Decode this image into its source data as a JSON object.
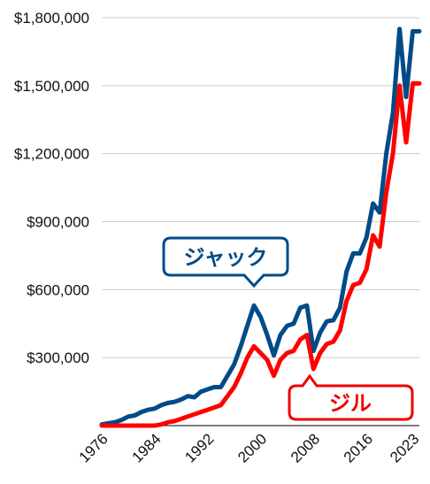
{
  "chart_data": {
    "type": "line",
    "ylim": [
      0,
      1800000
    ],
    "yticks": [
      {
        "value": 300000,
        "label": "$300,000"
      },
      {
        "value": 600000,
        "label": "$600,000"
      },
      {
        "value": 900000,
        "label": "$900,000"
      },
      {
        "value": 1200000,
        "label": "$1,200,000"
      },
      {
        "value": 1500000,
        "label": "$1,500,000"
      },
      {
        "value": 1800000,
        "label": "$1,800,000"
      }
    ],
    "xlim": [
      1976,
      2024
    ],
    "xticks": [
      {
        "value": 1976,
        "label": "1976"
      },
      {
        "value": 1984,
        "label": "1984"
      },
      {
        "value": 1992,
        "label": "1992"
      },
      {
        "value": 2000,
        "label": "2000"
      },
      {
        "value": 2008,
        "label": "2008"
      },
      {
        "value": 2016,
        "label": "2016"
      },
      {
        "value": 2023,
        "label": "2023"
      }
    ],
    "x": [
      1976,
      1977,
      1978,
      1979,
      1980,
      1981,
      1982,
      1983,
      1984,
      1985,
      1986,
      1987,
      1988,
      1989,
      1990,
      1991,
      1992,
      1993,
      1994,
      1995,
      1996,
      1997,
      1998,
      1999,
      2000,
      2001,
      2002,
      2003,
      2004,
      2005,
      2006,
      2007,
      2008,
      2009,
      2010,
      2011,
      2012,
      2013,
      2014,
      2015,
      2016,
      2017,
      2018,
      2019,
      2020,
      2021,
      2022,
      2023,
      2024
    ],
    "series": [
      {
        "name": "ジャック",
        "color": "#004b87",
        "values": [
          5000,
          10000,
          15000,
          25000,
          40000,
          45000,
          60000,
          70000,
          75000,
          90000,
          100000,
          105000,
          115000,
          130000,
          125000,
          150000,
          160000,
          170000,
          170000,
          220000,
          270000,
          350000,
          440000,
          530000,
          480000,
          400000,
          310000,
          400000,
          440000,
          450000,
          520000,
          530000,
          330000,
          410000,
          460000,
          465000,
          520000,
          680000,
          760000,
          760000,
          830000,
          980000,
          940000,
          1200000,
          1380000,
          1750000,
          1450000,
          1740000,
          1740000
        ]
      },
      {
        "name": "ジル",
        "color": "#ff0000",
        "values": [
          0,
          0,
          0,
          0,
          0,
          0,
          0,
          0,
          0,
          5000,
          15000,
          20000,
          30000,
          40000,
          50000,
          60000,
          70000,
          80000,
          90000,
          130000,
          170000,
          230000,
          300000,
          350000,
          320000,
          290000,
          220000,
          290000,
          320000,
          330000,
          380000,
          400000,
          250000,
          320000,
          360000,
          370000,
          420000,
          550000,
          620000,
          630000,
          690000,
          840000,
          790000,
          1030000,
          1200000,
          1500000,
          1250000,
          1510000,
          1510000
        ]
      }
    ],
    "annotations": [
      {
        "text": "ジャック",
        "series": 0,
        "style": "callout-down"
      },
      {
        "text": "ジル",
        "series": 1,
        "style": "callout-up"
      }
    ]
  }
}
